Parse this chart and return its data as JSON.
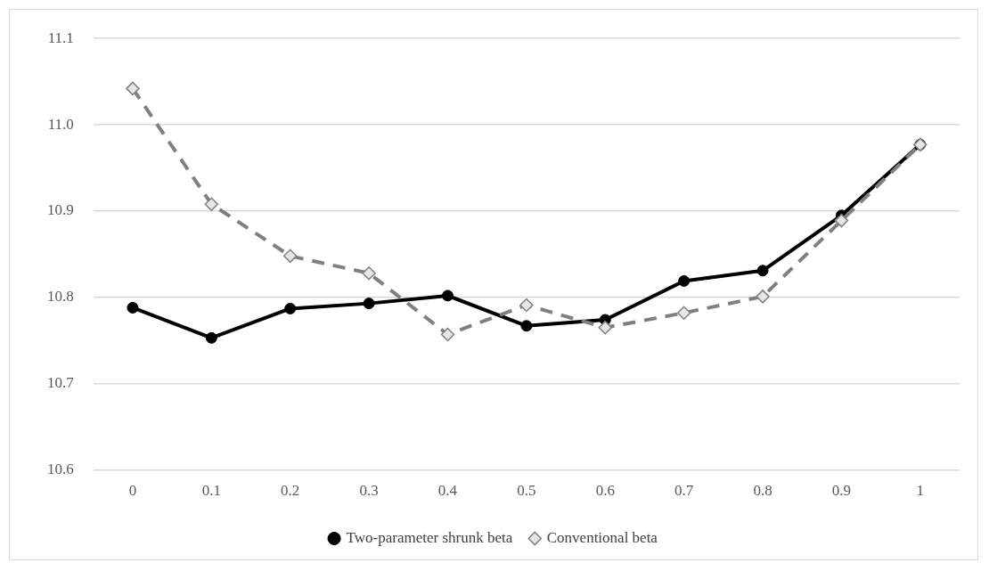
{
  "chart_data": {
    "type": "line",
    "categories": [
      "0",
      "0.1",
      "0.2",
      "0.3",
      "0.4",
      "0.5",
      "0.6",
      "0.7",
      "0.8",
      "0.9",
      "1"
    ],
    "series": [
      {
        "name": "Two-parameter shrunk beta",
        "color": "#000000",
        "marker": "circle",
        "line_style": "solid",
        "values": [
          10.788,
          10.753,
          10.787,
          10.793,
          10.802,
          10.767,
          10.774,
          10.819,
          10.831,
          10.895,
          10.977
        ]
      },
      {
        "name": "Conventional beta",
        "color": "#808080",
        "marker": "diamond",
        "line_style": "dashed",
        "values": [
          11.042,
          10.908,
          10.848,
          10.828,
          10.757,
          10.791,
          10.765,
          10.782,
          10.801,
          10.889,
          10.977
        ]
      }
    ],
    "ylim": [
      10.6,
      11.1
    ],
    "yticks": [
      {
        "value": 10.6,
        "label": "10.6"
      },
      {
        "value": 10.7,
        "label": "10.7"
      },
      {
        "value": 10.8,
        "label": "10.8"
      },
      {
        "value": 10.9,
        "label": "10.9"
      },
      {
        "value": 11.0,
        "label": "11.0"
      },
      {
        "value": 11.1,
        "label": "11.1"
      }
    ],
    "grid": "y",
    "legend": "bottom"
  }
}
